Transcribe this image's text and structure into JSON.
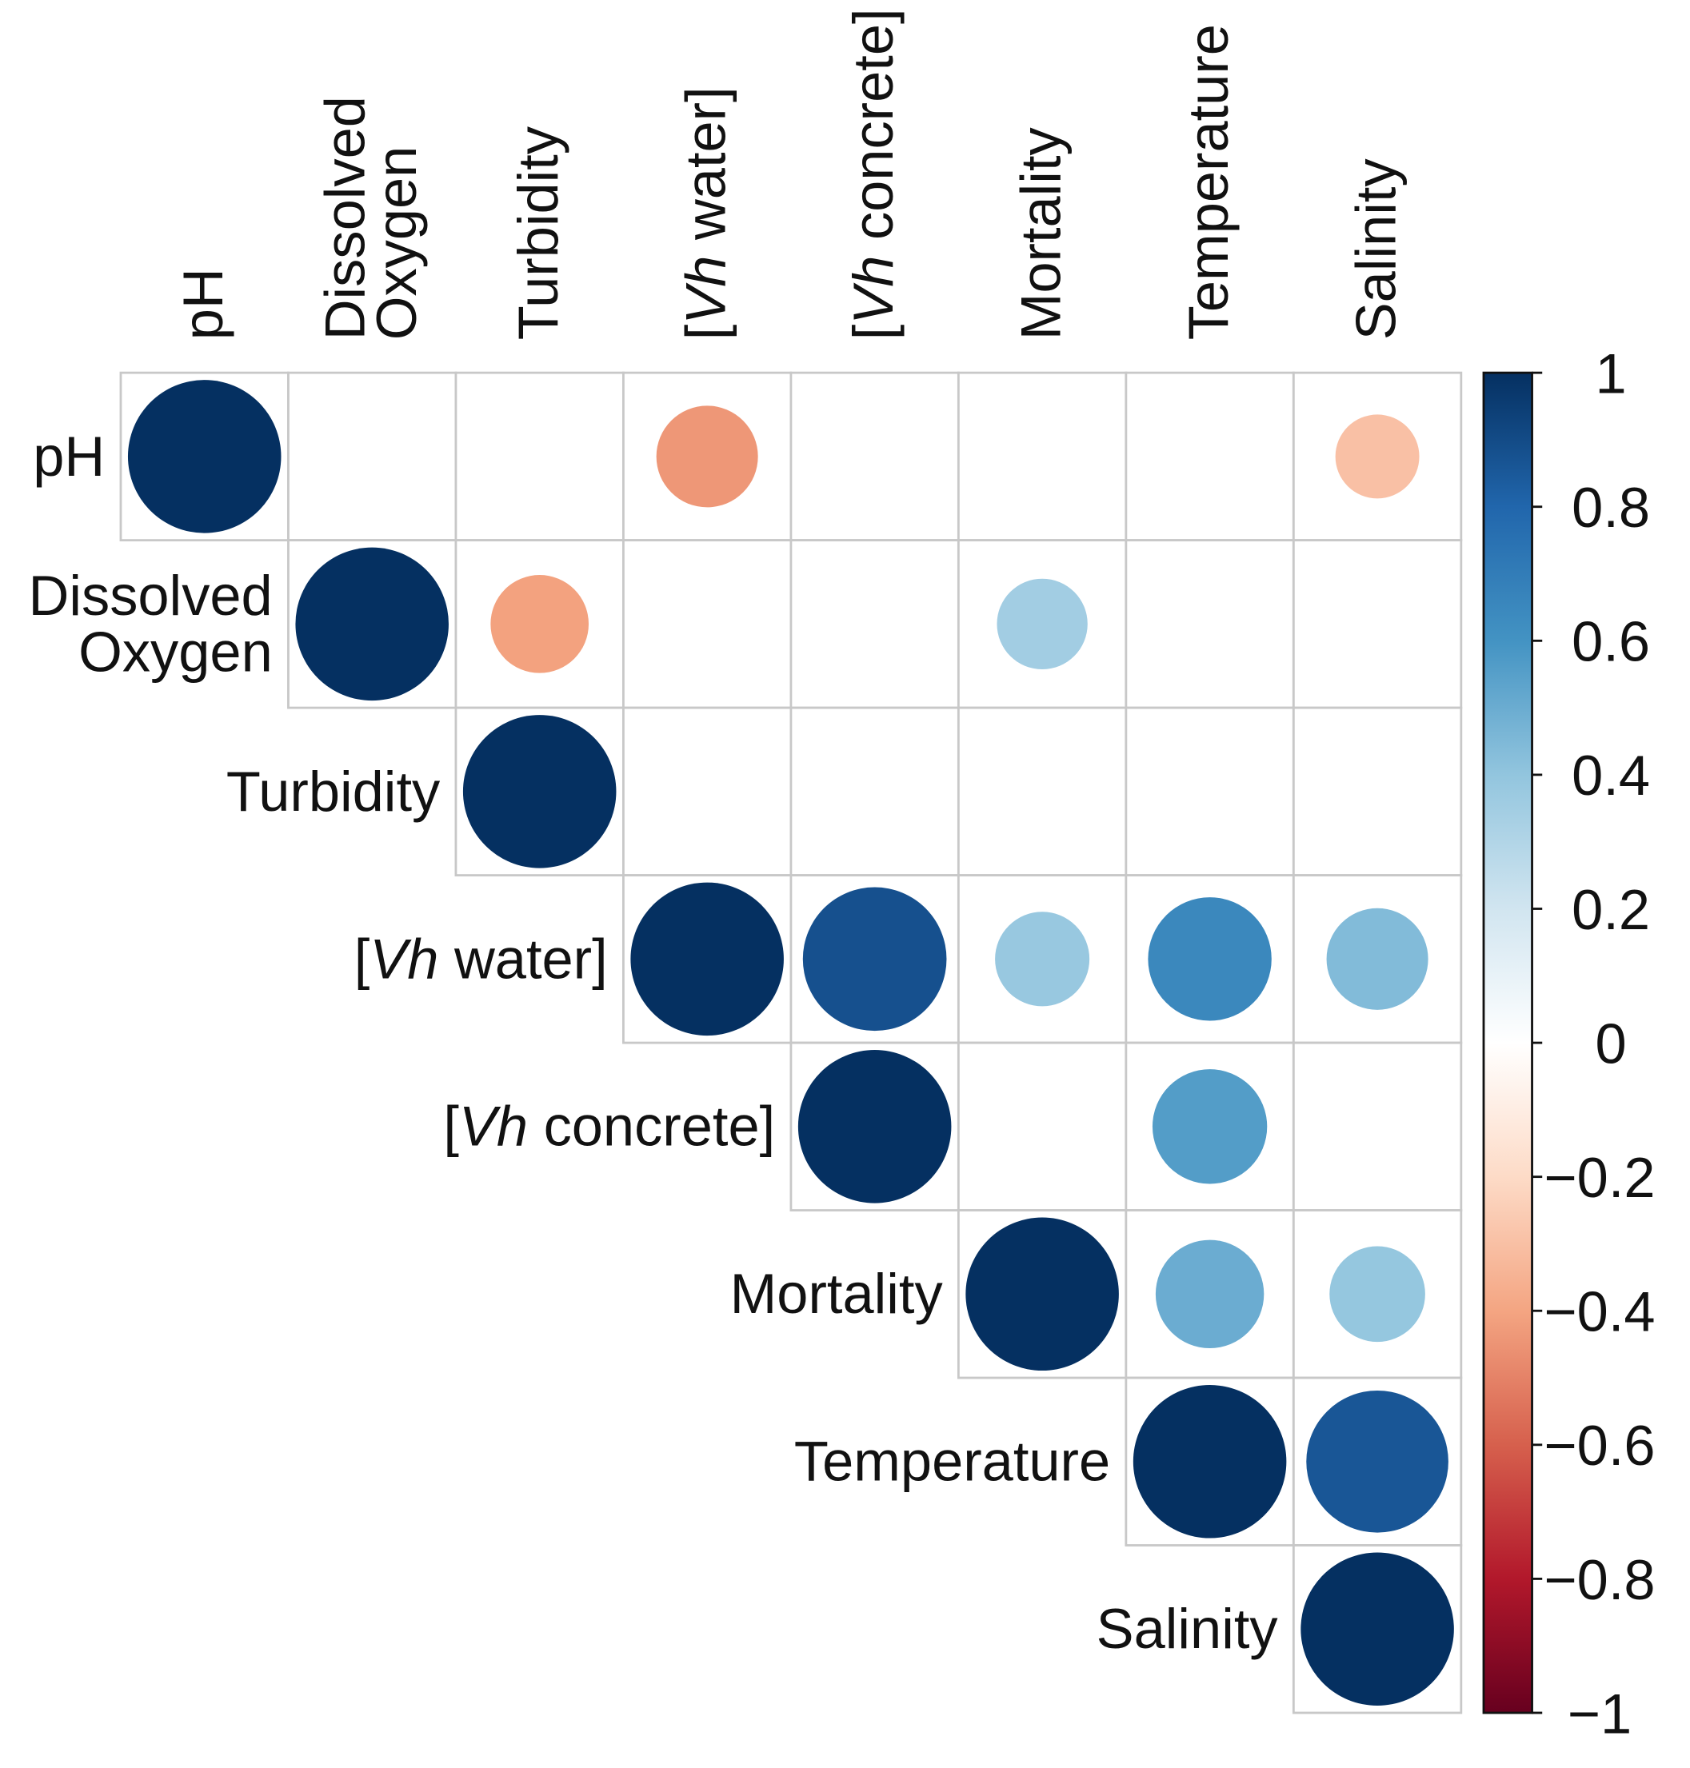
{
  "chart_data": {
    "type": "heatmap",
    "subtype": "correlation-circle-upper-triangle",
    "variables": [
      "pH",
      "Dissolved Oxygen",
      "Turbidity",
      "[Vh water]",
      "[Vh concrete]",
      "Mortality",
      "Temperature",
      "Salinity"
    ],
    "matrix": [
      [
        1,
        null,
        null,
        -0.44,
        null,
        null,
        null,
        -0.3
      ],
      [
        null,
        1,
        -0.41,
        null,
        null,
        0.35,
        null,
        null
      ],
      [
        null,
        null,
        1,
        null,
        null,
        null,
        null,
        null
      ],
      [
        null,
        null,
        null,
        1,
        0.88,
        0.38,
        0.65,
        0.44
      ],
      [
        null,
        null,
        null,
        null,
        1,
        null,
        0.56,
        null
      ],
      [
        null,
        null,
        null,
        null,
        null,
        1,
        0.5,
        0.39
      ],
      [
        null,
        null,
        null,
        null,
        null,
        null,
        1,
        0.86
      ],
      [
        null,
        null,
        null,
        null,
        null,
        null,
        null,
        1
      ]
    ],
    "colorbar": {
      "range": [
        -1,
        1
      ],
      "ticks": [
        1,
        0.8,
        0.6,
        0.4,
        0.2,
        0,
        -0.2,
        -0.4,
        -0.6,
        -0.8,
        -1
      ],
      "tick_labels": [
        "1",
        "0.8",
        "0.6",
        "0.4",
        "0.2",
        "0",
        "−0.2",
        "−0.4",
        "−0.6",
        "−0.8",
        "−1"
      ],
      "palette": [
        "#67001f",
        "#b2182b",
        "#d6604d",
        "#f4a582",
        "#fddbc7",
        "#ffffff",
        "#d1e5f0",
        "#92c5de",
        "#4393c3",
        "#2166ac",
        "#053061"
      ]
    },
    "grid_color": "#c8c8c8",
    "legend_position": "right"
  }
}
